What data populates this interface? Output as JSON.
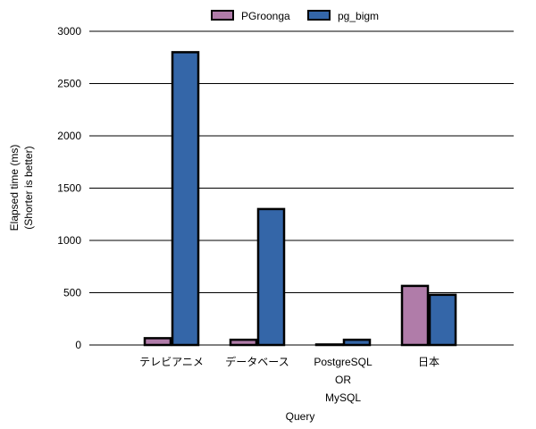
{
  "chart_data": {
    "type": "bar",
    "title": "",
    "categories": [
      [
        "テレビアニメ"
      ],
      [
        "データベース"
      ],
      [
        "PostgreSQL",
        "OR",
        "MySQL"
      ],
      [
        "日本"
      ]
    ],
    "series": [
      {
        "name": "PGroonga",
        "values": [
          65,
          50,
          5,
          565
        ],
        "color": "#b07ca9"
      },
      {
        "name": "pg_bigm",
        "values": [
          2800,
          1300,
          50,
          480
        ],
        "color": "#3466a8"
      }
    ],
    "xlabel": "Query",
    "ylabel": [
      "Elapsed time (ms)",
      "(Shorter is better)"
    ],
    "ylim": [
      0,
      3000
    ],
    "yticks": [
      0,
      500,
      1000,
      1500,
      2000,
      2500,
      3000
    ],
    "grid": true,
    "legend": "top-center"
  }
}
